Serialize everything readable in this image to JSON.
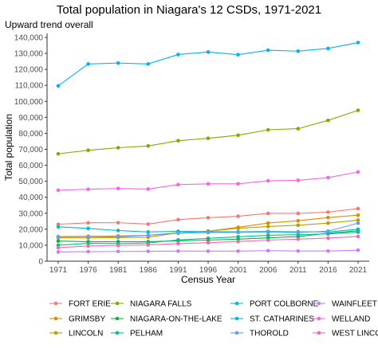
{
  "chart_data": {
    "type": "line",
    "title": "Total population in Niagara's 12 CSDs, 1971-2021",
    "subtitle": "Upward trend overall",
    "xlabel": "Census Year",
    "ylabel": "Total population",
    "x": [
      1971,
      1976,
      1981,
      1986,
      1991,
      1996,
      2001,
      2006,
      2011,
      2016,
      2021
    ],
    "y_ticks": [
      "0",
      "10,000",
      "20,000",
      "30,000",
      "40,000",
      "50,000",
      "60,000",
      "70,000",
      "80,000",
      "90,000",
      "100,000",
      "110,000",
      "120,000",
      "130,000",
      "140,000"
    ],
    "ylim": [
      0,
      140000
    ],
    "grid": false,
    "legend_position": "bottom",
    "series": [
      {
        "name": "FORT ERIE",
        "color": "#F8766D",
        "values": [
          23100,
          24000,
          24100,
          23200,
          26000,
          27200,
          28100,
          29900,
          29900,
          30700,
          32900
        ]
      },
      {
        "name": "GRIMSBY",
        "color": "#DE8C00",
        "values": [
          15400,
          15600,
          15800,
          16200,
          17800,
          18700,
          21200,
          23900,
          25300,
          27300,
          28800
        ]
      },
      {
        "name": "LINCOLN",
        "color": "#B79F00",
        "values": [
          14600,
          14600,
          14800,
          15000,
          17800,
          18800,
          20600,
          21700,
          22500,
          23800,
          25700
        ]
      },
      {
        "name": "NIAGARA FALLS",
        "color": "#7CAE00",
        "values": [
          67200,
          69400,
          71000,
          72100,
          75400,
          76900,
          78800,
          82200,
          82900,
          88100,
          94400
        ]
      },
      {
        "name": "NIAGARA-ON-THE-LAKE",
        "color": "#00BA38",
        "values": [
          12600,
          12200,
          12200,
          12200,
          12800,
          13200,
          13800,
          14600,
          15400,
          17500,
          19100
        ]
      },
      {
        "name": "PELHAM",
        "color": "#00C08B",
        "values": [
          10000,
          11200,
          11000,
          11400,
          13300,
          14300,
          15300,
          16200,
          16600,
          17100,
          18200
        ]
      },
      {
        "name": "PORT COLBORNE",
        "color": "#00BFC4",
        "values": [
          21500,
          20500,
          19200,
          18300,
          18700,
          18500,
          18400,
          18600,
          18400,
          18300,
          20000
        ]
      },
      {
        "name": "ST. CATHARINES",
        "color": "#00B4F0",
        "values": [
          109700,
          123400,
          124000,
          123400,
          129300,
          130900,
          129200,
          132000,
          131400,
          133100,
          136800
        ]
      },
      {
        "name": "THOROLD",
        "color": "#619CFF",
        "values": [
          15200,
          15400,
          15300,
          16200,
          17500,
          17900,
          18000,
          18200,
          17900,
          18800,
          23800
        ]
      },
      {
        "name": "WAINFLEET",
        "color": "#C77CFF",
        "values": [
          5800,
          6000,
          6100,
          6200,
          6300,
          6300,
          6300,
          6600,
          6400,
          6400,
          6900
        ]
      },
      {
        "name": "WELLAND",
        "color": "#F564E3",
        "values": [
          44400,
          45000,
          45500,
          45100,
          47900,
          48400,
          48400,
          50300,
          50600,
          52300,
          55800
        ]
      },
      {
        "name": "WEST LINCOLN",
        "color": "#FF64B0",
        "values": [
          8500,
          9500,
          9900,
          10200,
          11000,
          11600,
          12300,
          13200,
          13800,
          14500,
          15500
        ]
      }
    ]
  }
}
